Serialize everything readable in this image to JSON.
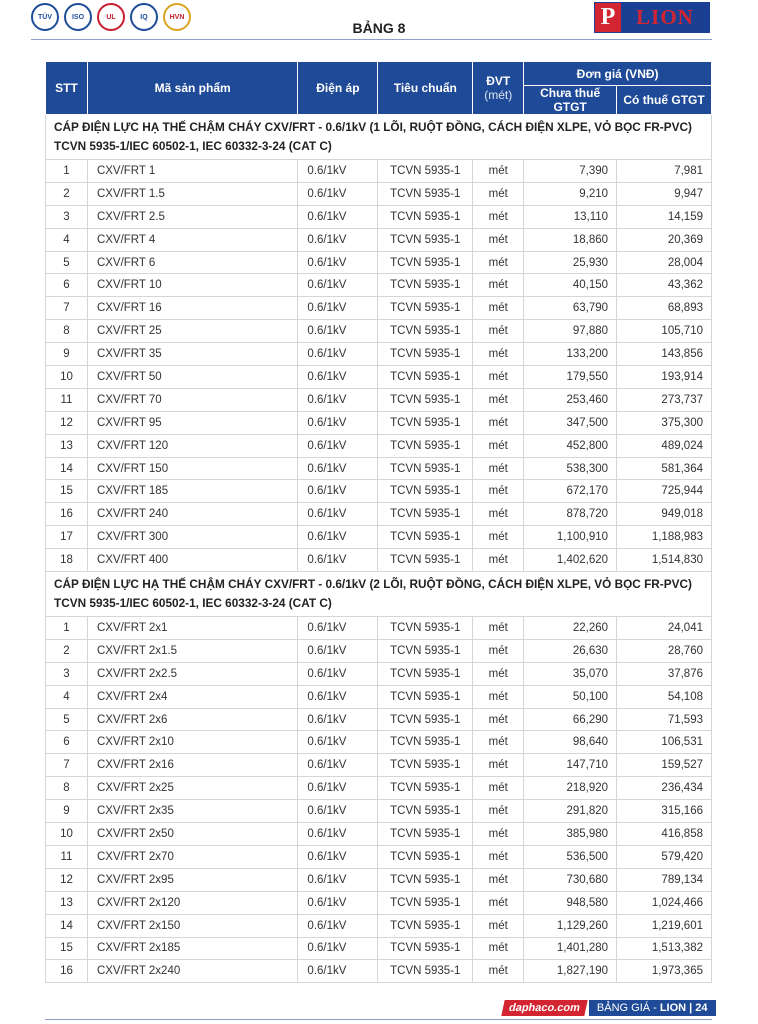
{
  "header": {
    "title": "BẢNG 8",
    "brand": "LION",
    "brand_initial": "P",
    "certs": [
      "TÜV",
      "ISO",
      "UL",
      "IQ",
      "HVN"
    ]
  },
  "table": {
    "columns": {
      "stt": "STT",
      "product": "Mã sản phẩm",
      "voltage": "Điện áp",
      "standard": "Tiêu chuẩn",
      "unit": "ĐVT",
      "unit_sub": "(mét)",
      "price": "Đơn giá (VNĐ)",
      "pre_tax": "Chưa thuế GTGT",
      "with_tax": "Có thuế GTGT"
    },
    "sections": [
      {
        "title": "CÁP ĐIỆN LỰC HẠ THẾ CHẬM CHÁY CXV/FRT - 0.6/1kV (1 LÕI, RUỘT ĐỒNG, CÁCH ĐIỆN XLPE, VỎ BỌC FR-PVC) TCVN 5935-1/IEC 60502-1, IEC 60332-3-24 (CAT C)",
        "rows": [
          [
            "1",
            "CXV/FRT 1",
            "0.6/1kV",
            "TCVN 5935-1",
            "mét",
            "7,390",
            "7,981"
          ],
          [
            "2",
            "CXV/FRT 1.5",
            "0.6/1kV",
            "TCVN 5935-1",
            "mét",
            "9,210",
            "9,947"
          ],
          [
            "3",
            "CXV/FRT 2.5",
            "0.6/1kV",
            "TCVN 5935-1",
            "mét",
            "13,110",
            "14,159"
          ],
          [
            "4",
            "CXV/FRT 4",
            "0.6/1kV",
            "TCVN 5935-1",
            "mét",
            "18,860",
            "20,369"
          ],
          [
            "5",
            "CXV/FRT 6",
            "0.6/1kV",
            "TCVN 5935-1",
            "mét",
            "25,930",
            "28,004"
          ],
          [
            "6",
            "CXV/FRT 10",
            "0.6/1kV",
            "TCVN 5935-1",
            "mét",
            "40,150",
            "43,362"
          ],
          [
            "7",
            "CXV/FRT 16",
            "0.6/1kV",
            "TCVN 5935-1",
            "mét",
            "63,790",
            "68,893"
          ],
          [
            "8",
            "CXV/FRT 25",
            "0.6/1kV",
            "TCVN 5935-1",
            "mét",
            "97,880",
            "105,710"
          ],
          [
            "9",
            "CXV/FRT 35",
            "0.6/1kV",
            "TCVN 5935-1",
            "mét",
            "133,200",
            "143,856"
          ],
          [
            "10",
            "CXV/FRT 50",
            "0.6/1kV",
            "TCVN 5935-1",
            "mét",
            "179,550",
            "193,914"
          ],
          [
            "11",
            "CXV/FRT 70",
            "0.6/1kV",
            "TCVN 5935-1",
            "mét",
            "253,460",
            "273,737"
          ],
          [
            "12",
            "CXV/FRT 95",
            "0.6/1kV",
            "TCVN 5935-1",
            "mét",
            "347,500",
            "375,300"
          ],
          [
            "13",
            "CXV/FRT 120",
            "0.6/1kV",
            "TCVN 5935-1",
            "mét",
            "452,800",
            "489,024"
          ],
          [
            "14",
            "CXV/FRT 150",
            "0.6/1kV",
            "TCVN 5935-1",
            "mét",
            "538,300",
            "581,364"
          ],
          [
            "15",
            "CXV/FRT 185",
            "0.6/1kV",
            "TCVN 5935-1",
            "mét",
            "672,170",
            "725,944"
          ],
          [
            "16",
            "CXV/FRT 240",
            "0.6/1kV",
            "TCVN 5935-1",
            "mét",
            "878,720",
            "949,018"
          ],
          [
            "17",
            "CXV/FRT 300",
            "0.6/1kV",
            "TCVN 5935-1",
            "mét",
            "1,100,910",
            "1,188,983"
          ],
          [
            "18",
            "CXV/FRT 400",
            "0.6/1kV",
            "TCVN 5935-1",
            "mét",
            "1,402,620",
            "1,514,830"
          ]
        ]
      },
      {
        "title": "CÁP ĐIỆN LỰC HẠ THẾ CHẬM CHÁY CXV/FRT - 0.6/1kV (2 LÕI, RUỘT ĐỒNG, CÁCH ĐIỆN XLPE, VỎ BỌC FR-PVC) TCVN 5935-1/IEC 60502-1, IEC 60332-3-24 (CAT C)",
        "rows": [
          [
            "1",
            "CXV/FRT 2x1",
            "0.6/1kV",
            "TCVN 5935-1",
            "mét",
            "22,260",
            "24,041"
          ],
          [
            "2",
            "CXV/FRT 2x1.5",
            "0.6/1kV",
            "TCVN 5935-1",
            "mét",
            "26,630",
            "28,760"
          ],
          [
            "3",
            "CXV/FRT 2x2.5",
            "0.6/1kV",
            "TCVN 5935-1",
            "mét",
            "35,070",
            "37,876"
          ],
          [
            "4",
            "CXV/FRT 2x4",
            "0.6/1kV",
            "TCVN 5935-1",
            "mét",
            "50,100",
            "54,108"
          ],
          [
            "5",
            "CXV/FRT 2x6",
            "0.6/1kV",
            "TCVN 5935-1",
            "mét",
            "66,290",
            "71,593"
          ],
          [
            "6",
            "CXV/FRT 2x10",
            "0.6/1kV",
            "TCVN 5935-1",
            "mét",
            "98,640",
            "106,531"
          ],
          [
            "7",
            "CXV/FRT 2x16",
            "0.6/1kV",
            "TCVN 5935-1",
            "mét",
            "147,710",
            "159,527"
          ],
          [
            "8",
            "CXV/FRT 2x25",
            "0.6/1kV",
            "TCVN 5935-1",
            "mét",
            "218,920",
            "236,434"
          ],
          [
            "9",
            "CXV/FRT 2x35",
            "0.6/1kV",
            "TCVN 5935-1",
            "mét",
            "291,820",
            "315,166"
          ],
          [
            "10",
            "CXV/FRT 2x50",
            "0.6/1kV",
            "TCVN 5935-1",
            "mét",
            "385,980",
            "416,858"
          ],
          [
            "11",
            "CXV/FRT 2x70",
            "0.6/1kV",
            "TCVN 5935-1",
            "mét",
            "536,500",
            "579,420"
          ],
          [
            "12",
            "CXV/FRT 2x95",
            "0.6/1kV",
            "TCVN 5935-1",
            "mét",
            "730,680",
            "789,134"
          ],
          [
            "13",
            "CXV/FRT 2x120",
            "0.6/1kV",
            "TCVN 5935-1",
            "mét",
            "948,580",
            "1,024,466"
          ],
          [
            "14",
            "CXV/FRT 2x150",
            "0.6/1kV",
            "TCVN 5935-1",
            "mét",
            "1,129,260",
            "1,219,601"
          ],
          [
            "15",
            "CXV/FRT 2x185",
            "0.6/1kV",
            "TCVN 5935-1",
            "mét",
            "1,401,280",
            "1,513,382"
          ],
          [
            "16",
            "CXV/FRT 2x240",
            "0.6/1kV",
            "TCVN 5935-1",
            "mét",
            "1,827,190",
            "1,973,365"
          ]
        ]
      }
    ]
  },
  "footer": {
    "site": "daphaco.com",
    "label": "BẢNG GIÁ -",
    "brand": "LION | 24"
  },
  "colors": {
    "header_blue": "#1f4a97",
    "brand_red": "#d32531"
  }
}
